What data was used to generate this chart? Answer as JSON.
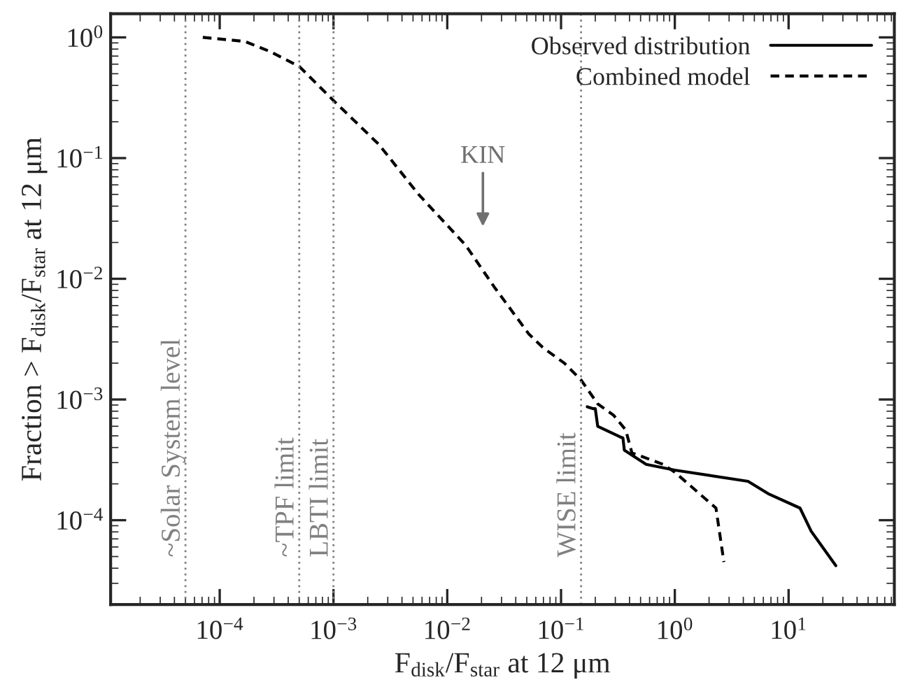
{
  "chart_data": {
    "type": "line",
    "xlabel": "F$_{disk}$/F$_{star}$ at 12 μm",
    "ylabel": "Fraction > F$_{disk}$/F$_{star}$ at 12 μm",
    "log": "xy",
    "xlim": [
      1.1e-05,
      85
    ],
    "ylim": [
      2e-05,
      1.57
    ],
    "xticks": [
      {
        "value": 0.0001,
        "label": "10$^{−4}$"
      },
      {
        "value": 0.001,
        "label": "10$^{−3}$"
      },
      {
        "value": 0.01,
        "label": "10$^{−2}$"
      },
      {
        "value": 0.1,
        "label": "10$^{−1}$"
      },
      {
        "value": 1,
        "label": "10$^{0}$"
      },
      {
        "value": 10,
        "label": "10$^{1}$"
      }
    ],
    "yticks": [
      {
        "value": 0.0001,
        "label": "10$^{−4}$"
      },
      {
        "value": 0.001,
        "label": "10$^{−3}$"
      },
      {
        "value": 0.01,
        "label": "10$^{−2}$"
      },
      {
        "value": 0.1,
        "label": "10$^{−1}$"
      },
      {
        "value": 1,
        "label": "10$^{0}$"
      }
    ],
    "legend": "top right",
    "series": [
      {
        "name": "Observed distribution",
        "color": "#000000",
        "line_style": "solid",
        "x": [
          0.17,
          0.19,
          0.2,
          0.21,
          0.33,
          0.35,
          0.36,
          0.56,
          1.0,
          4.4,
          6.6,
          12.6,
          15.8,
          26
        ],
        "values": [
          0.00087,
          0.00084,
          0.00084,
          0.0006,
          0.00049,
          0.00048,
          0.00038,
          0.00029,
          0.00026,
          0.00021,
          0.000166,
          0.000126,
          8.1e-05,
          4.2e-05
        ]
      },
      {
        "name": "Combined model",
        "color": "#000000",
        "line_style": "dashed",
        "x": [
          7.1e-05,
          0.000166,
          0.00028,
          0.0005,
          0.001,
          0.0025,
          0.0056,
          0.0145,
          0.026,
          0.052,
          0.069,
          0.107,
          0.15,
          0.21,
          0.29,
          0.37,
          0.42,
          0.5,
          0.79,
          1.0,
          2.3,
          2.7
        ],
        "values": [
          1.0,
          0.926,
          0.76,
          0.575,
          0.3,
          0.13,
          0.05,
          0.019,
          0.0085,
          0.0035,
          0.0027,
          0.002,
          0.00145,
          0.00092,
          0.00074,
          0.00056,
          0.00036,
          0.00034,
          0.00029,
          0.00025,
          0.000126,
          4.5e-05
        ]
      }
    ],
    "ref_lines": [
      {
        "axis": "x",
        "value": 5e-05,
        "label": "~Solar System level",
        "color": "#808080",
        "line_style": "dotted"
      },
      {
        "axis": "x",
        "value": 0.0005,
        "label": "~TPF limit",
        "color": "#808080",
        "line_style": "dotted"
      },
      {
        "axis": "x",
        "value": 0.001,
        "label": "LBTI limit",
        "color": "#808080",
        "line_style": "dotted"
      },
      {
        "axis": "x",
        "value": 0.15,
        "label": "WISE limit",
        "color": "#808080",
        "line_style": "dotted"
      }
    ],
    "annotations": [
      "KIN"
    ]
  }
}
